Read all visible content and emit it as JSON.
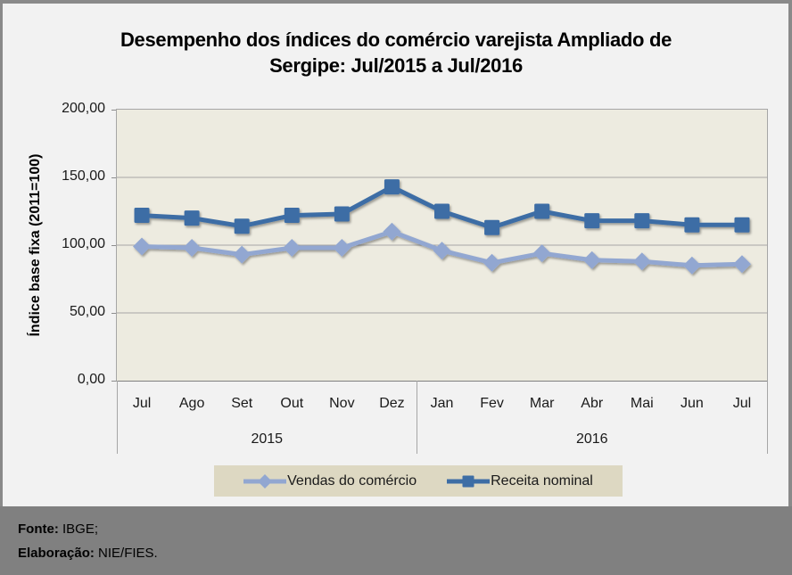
{
  "title": {
    "line1": "Desempenho dos índices do comércio varejista Ampliado de",
    "line2": "Sergipe: Jul/2015 a Jul/2016"
  },
  "chart_data": {
    "type": "line",
    "title": "Desempenho dos índices do comércio varejista Ampliado de Sergipe: Jul/2015 a Jul/2016",
    "ylabel": "Índice base fixa (2011=100)",
    "ylim": [
      0,
      200
    ],
    "ytick_labels": [
      "200,00",
      "150,00",
      "100,00",
      "50,00",
      "0,00"
    ],
    "grid": true,
    "legend_position": "bottom",
    "categories": [
      "Jul",
      "Ago",
      "Set",
      "Out",
      "Nov",
      "Dez",
      "Jan",
      "Fev",
      "Mar",
      "Abr",
      "Mai",
      "Jun",
      "Jul"
    ],
    "year_groups": [
      {
        "label": "2015",
        "span": 6
      },
      {
        "label": "2016",
        "span": 7
      }
    ],
    "series": [
      {
        "name": "Vendas do comércio",
        "marker": "diamond",
        "color": "#92A7D1",
        "values": [
          99,
          98,
          93,
          98,
          98,
          110,
          96,
          87,
          94,
          89,
          88,
          85,
          86
        ]
      },
      {
        "name": "Receita nominal",
        "marker": "square",
        "color": "#3D6DA5",
        "values": [
          122,
          120,
          114,
          122,
          123,
          143,
          125,
          113,
          125,
          118,
          118,
          115,
          115
        ]
      }
    ]
  },
  "footer": {
    "source_label": "Fonte:",
    "source_value": "IBGE;",
    "elaboration_label": "Elaboração:",
    "elaboration_value": "NIE/FIES."
  },
  "colors": {
    "page_bg": "#F2F2F2",
    "frame_border": "#8A8A8A",
    "plot_bg": "#EDEBE0",
    "gridline": "#A6A6A6",
    "axis_line": "#808080",
    "legend_bg": "#DDD8C2",
    "footer_bg": "#808080",
    "series_vendas": "#92A7D1",
    "series_receita": "#3D6DA5"
  }
}
